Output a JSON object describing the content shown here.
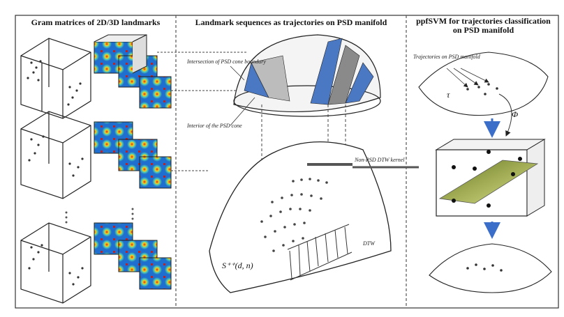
{
  "panels": {
    "left": {
      "title": "Gram matrices of 2D/3D landmarks"
    },
    "middle": {
      "title": "Landmark sequences as trajectories on PSD manifold",
      "cone_label_top": "Intersection of PSD cone boundary",
      "cone_label_bottom": "Interior of the PSD cone",
      "mapping_label": "Non-PSD DTW kernel",
      "manifold_label": "S⁺⁺(d, n)",
      "dtw_label": "DTW"
    },
    "right": {
      "title": "ppfSVM for trajectories classification on PSD manifold",
      "trajectory_label": "Trajectories on PSD manifold",
      "phi_label": "Φ",
      "tau_label": "τ"
    }
  },
  "colors": {
    "border": "#333333",
    "divider": "#555555",
    "cone_blue": "#4a78c2",
    "cone_gray": "#8a8a8a",
    "hyperplane": "#8a9a3a",
    "arrow_blue": "#3a6ec8"
  },
  "icons": {
    "arrow": "arrow-icon",
    "dots": "landmark-dot"
  }
}
